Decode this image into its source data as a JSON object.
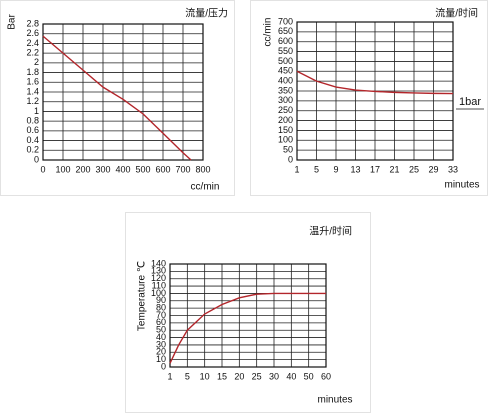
{
  "chart_data": [
    {
      "type": "line",
      "title": "流量/压力",
      "xlabel": "cc/min",
      "ylabel": "Bar",
      "x": [
        0,
        100,
        200,
        300,
        400,
        500,
        600,
        700,
        740
      ],
      "values": [
        2.55,
        2.2,
        1.85,
        1.5,
        1.25,
        0.95,
        0.55,
        0.15,
        0
      ],
      "color": "#b3262b",
      "xlim": [
        0,
        800
      ],
      "ylim": [
        0,
        2.8
      ],
      "xticks": [
        0,
        100,
        200,
        300,
        400,
        500,
        600,
        700,
        800
      ],
      "yticks": [
        0,
        0.2,
        0.4,
        0.6,
        0.8,
        1,
        1.2,
        1.4,
        1.6,
        1.8,
        2,
        2.2,
        2.4,
        2.6,
        2.8
      ],
      "grid": true
    },
    {
      "type": "line",
      "title": "流量/时间",
      "xlabel": "minutes",
      "ylabel": "cc/min",
      "annotation": "1bar",
      "x": [
        1,
        5,
        9,
        13,
        17,
        21,
        25,
        29,
        33
      ],
      "values": [
        450,
        400,
        370,
        355,
        348,
        343,
        340,
        338,
        337
      ],
      "color": "#b3262b",
      "xlim": [
        1,
        33
      ],
      "ylim": [
        0,
        700
      ],
      "xticks": [
        1,
        5,
        9,
        13,
        17,
        21,
        25,
        29,
        33
      ],
      "yticks": [
        0,
        50,
        100,
        150,
        200,
        250,
        300,
        350,
        400,
        450,
        500,
        550,
        600,
        650,
        700
      ],
      "grid": true
    },
    {
      "type": "line",
      "title": "温升/时间",
      "xlabel": "minutes",
      "ylabel": "Temperature ℃",
      "x": [
        1,
        3,
        5,
        10,
        15,
        20,
        25,
        30,
        40,
        60
      ],
      "values": [
        5,
        30,
        50,
        72,
        85,
        94,
        99,
        100,
        100,
        100
      ],
      "color": "#b3262b",
      "xlim": [
        1,
        60
      ],
      "ylim": [
        0,
        140
      ],
      "xticks": [
        1,
        5,
        10,
        15,
        20,
        25,
        30,
        40,
        50,
        60
      ],
      "yticks": [
        0,
        10,
        20,
        30,
        40,
        50,
        60,
        70,
        80,
        90,
        100,
        110,
        120,
        130,
        140
      ],
      "grid": true
    }
  ]
}
